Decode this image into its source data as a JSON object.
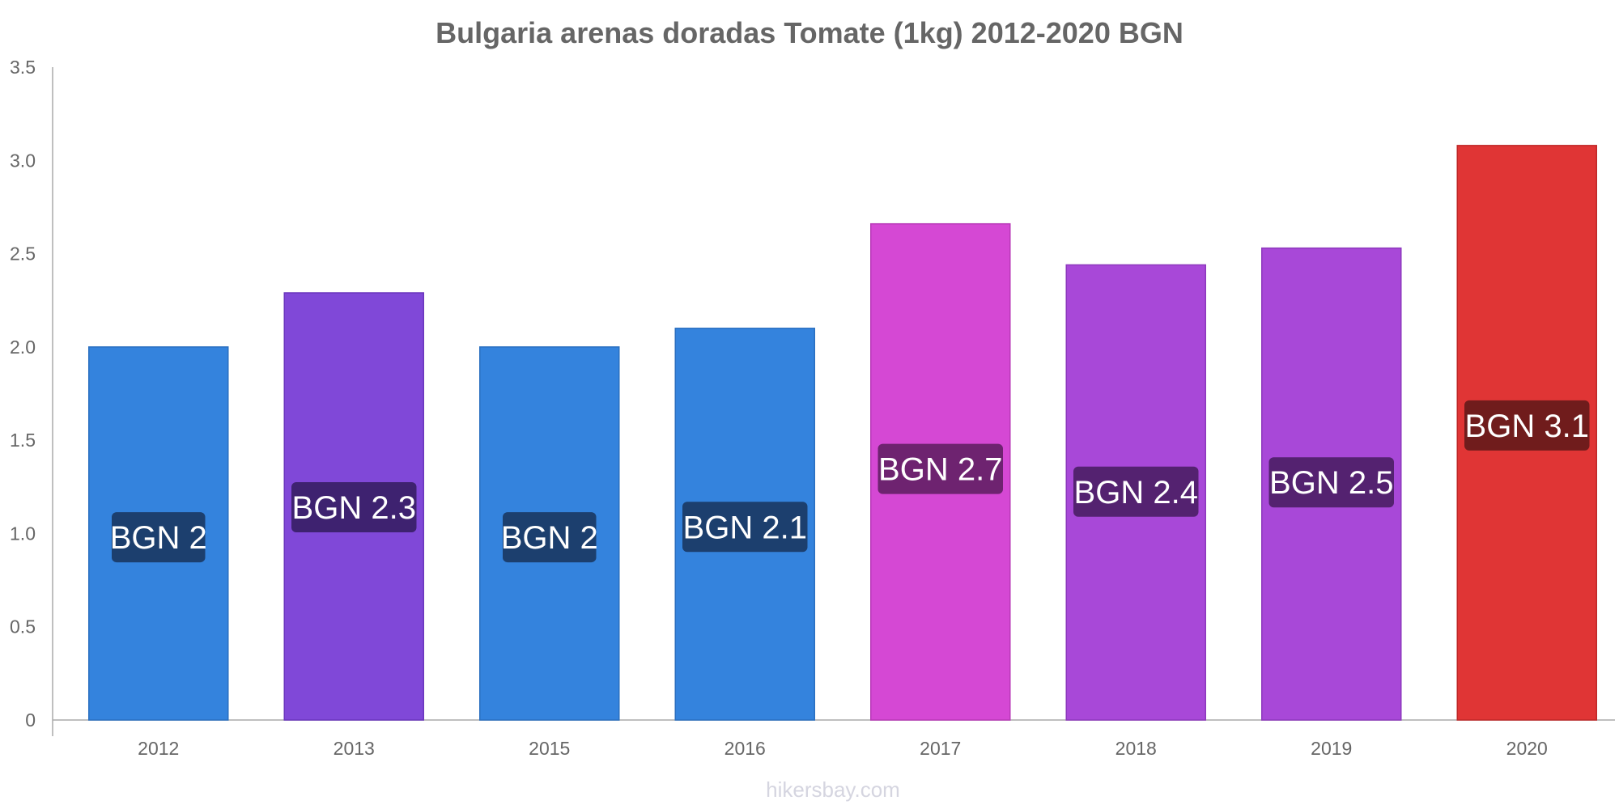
{
  "chart_data": {
    "type": "bar",
    "title": "Bulgaria arenas doradas Tomate (1kg) 2012-2020 BGN",
    "xlabel": "",
    "ylabel": "",
    "ylim": [
      0,
      3.5
    ],
    "y_ticks": [
      "0",
      "0.5",
      "1.0",
      "1.5",
      "2.0",
      "2.5",
      "3.0",
      "3.5"
    ],
    "y_tick_values": [
      0,
      0.5,
      1.0,
      1.5,
      2.0,
      2.5,
      3.0,
      3.5
    ],
    "grid": false,
    "legend": "none",
    "categories": [
      "2012",
      "2013",
      "2015",
      "2016",
      "2017",
      "2018",
      "2019",
      "2020"
    ],
    "values": [
      2.0,
      2.29,
      2.0,
      2.1,
      2.66,
      2.44,
      2.53,
      3.08
    ],
    "data_labels": [
      "BGN 2",
      "BGN 2.3",
      "BGN 2",
      "BGN 2.1",
      "BGN 2.7",
      "BGN 2.4",
      "BGN 2.5",
      "BGN 3.1"
    ],
    "bar_colors": [
      "#3483dd",
      "#8048d8",
      "#3483dd",
      "#3483dd",
      "#d548d4",
      "#a848d8",
      "#a848d8",
      "#e03535"
    ],
    "bar_stroke_colors": [
      "#2a6fc0",
      "#6a36bd",
      "#2a6fc0",
      "#2a6fc0",
      "#b838b7",
      "#8d38bd",
      "#8d38bd",
      "#c02828"
    ],
    "label_box_colors": [
      "#1c3f6e",
      "#3e2270",
      "#1c3f6e",
      "#1c3f6e",
      "#6e2370",
      "#542270",
      "#542270",
      "#701c1c"
    ]
  },
  "watermark": "hikersbay.com",
  "colors": {
    "title": "#666666",
    "axis": "#aaaaaa",
    "tick_text": "#666666",
    "watermark": "#d5d5e0"
  }
}
